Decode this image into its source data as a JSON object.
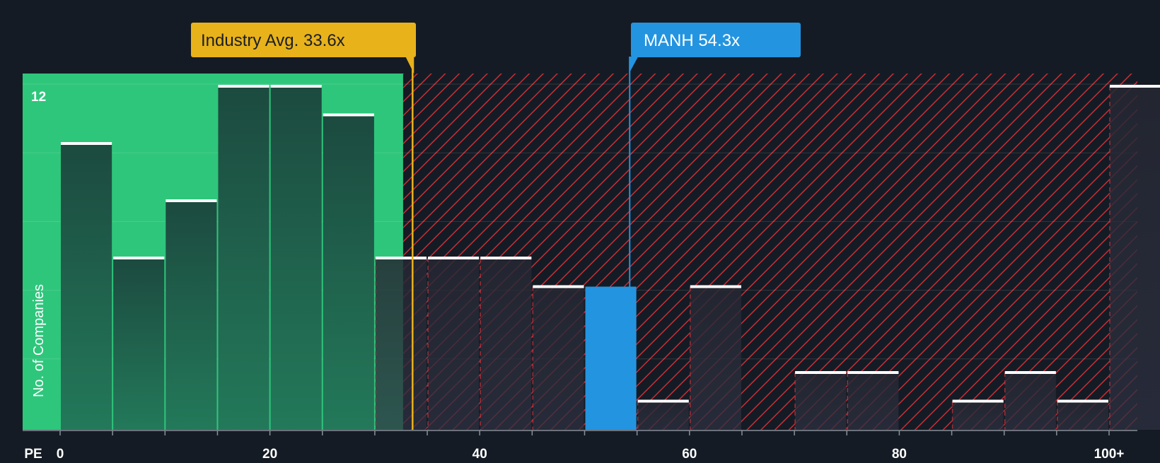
{
  "chart_data": {
    "type": "bar",
    "title": "",
    "xlabel": "PE",
    "ylabel": "No. of Companies",
    "x_tick_labels": [
      "0",
      "20",
      "40",
      "60",
      "80",
      "100+"
    ],
    "x_tick_values": [
      0,
      20,
      40,
      60,
      80,
      100
    ],
    "y_tick_labels": [
      "12"
    ],
    "ylim": [
      0,
      12.4
    ],
    "bin_width": 5,
    "bins": [
      {
        "start": 0,
        "end": 5,
        "count": 10,
        "highlight": false
      },
      {
        "start": 5,
        "end": 10,
        "count": 6,
        "highlight": false
      },
      {
        "start": 10,
        "end": 15,
        "count": 8,
        "highlight": false
      },
      {
        "start": 15,
        "end": 20,
        "count": 12,
        "highlight": false
      },
      {
        "start": 20,
        "end": 25,
        "count": 12,
        "highlight": false
      },
      {
        "start": 25,
        "end": 30,
        "count": 11,
        "highlight": false
      },
      {
        "start": 30,
        "end": 35,
        "count": 6,
        "highlight": false
      },
      {
        "start": 35,
        "end": 40,
        "count": 6,
        "highlight": false
      },
      {
        "start": 40,
        "end": 45,
        "count": 6,
        "highlight": false
      },
      {
        "start": 45,
        "end": 50,
        "count": 5,
        "highlight": false
      },
      {
        "start": 50,
        "end": 55,
        "count": 5,
        "highlight": true
      },
      {
        "start": 55,
        "end": 60,
        "count": 1,
        "highlight": false
      },
      {
        "start": 60,
        "end": 65,
        "count": 5,
        "highlight": false
      },
      {
        "start": 70,
        "end": 75,
        "count": 2,
        "highlight": false
      },
      {
        "start": 75,
        "end": 80,
        "count": 2,
        "highlight": false
      },
      {
        "start": 85,
        "end": 90,
        "count": 1,
        "highlight": false
      },
      {
        "start": 90,
        "end": 95,
        "count": 2,
        "highlight": false
      },
      {
        "start": 95,
        "end": 100,
        "count": 1,
        "highlight": false
      },
      {
        "start": 100,
        "end": 105,
        "count": 12,
        "highlight": false
      }
    ],
    "fair_zone_end": 32.7,
    "industry_avg": {
      "value": 33.6,
      "label": "Industry Avg. 33.6x"
    },
    "company": {
      "value": 54.3,
      "label": "MANH 54.3x"
    },
    "grid": true,
    "colors": {
      "background": "#151b24",
      "fair_zone": "#2ec67b",
      "bar_in_fair": "#1e4a40",
      "bar_in_overvalued": "#2a2c36",
      "hatch": "#c0313a",
      "highlight_bar": "#2394e0",
      "industry_marker": "#e8b21a",
      "company_marker": "#2394e0",
      "bar_cap": "#ffffff",
      "text": "#ffffff"
    }
  }
}
